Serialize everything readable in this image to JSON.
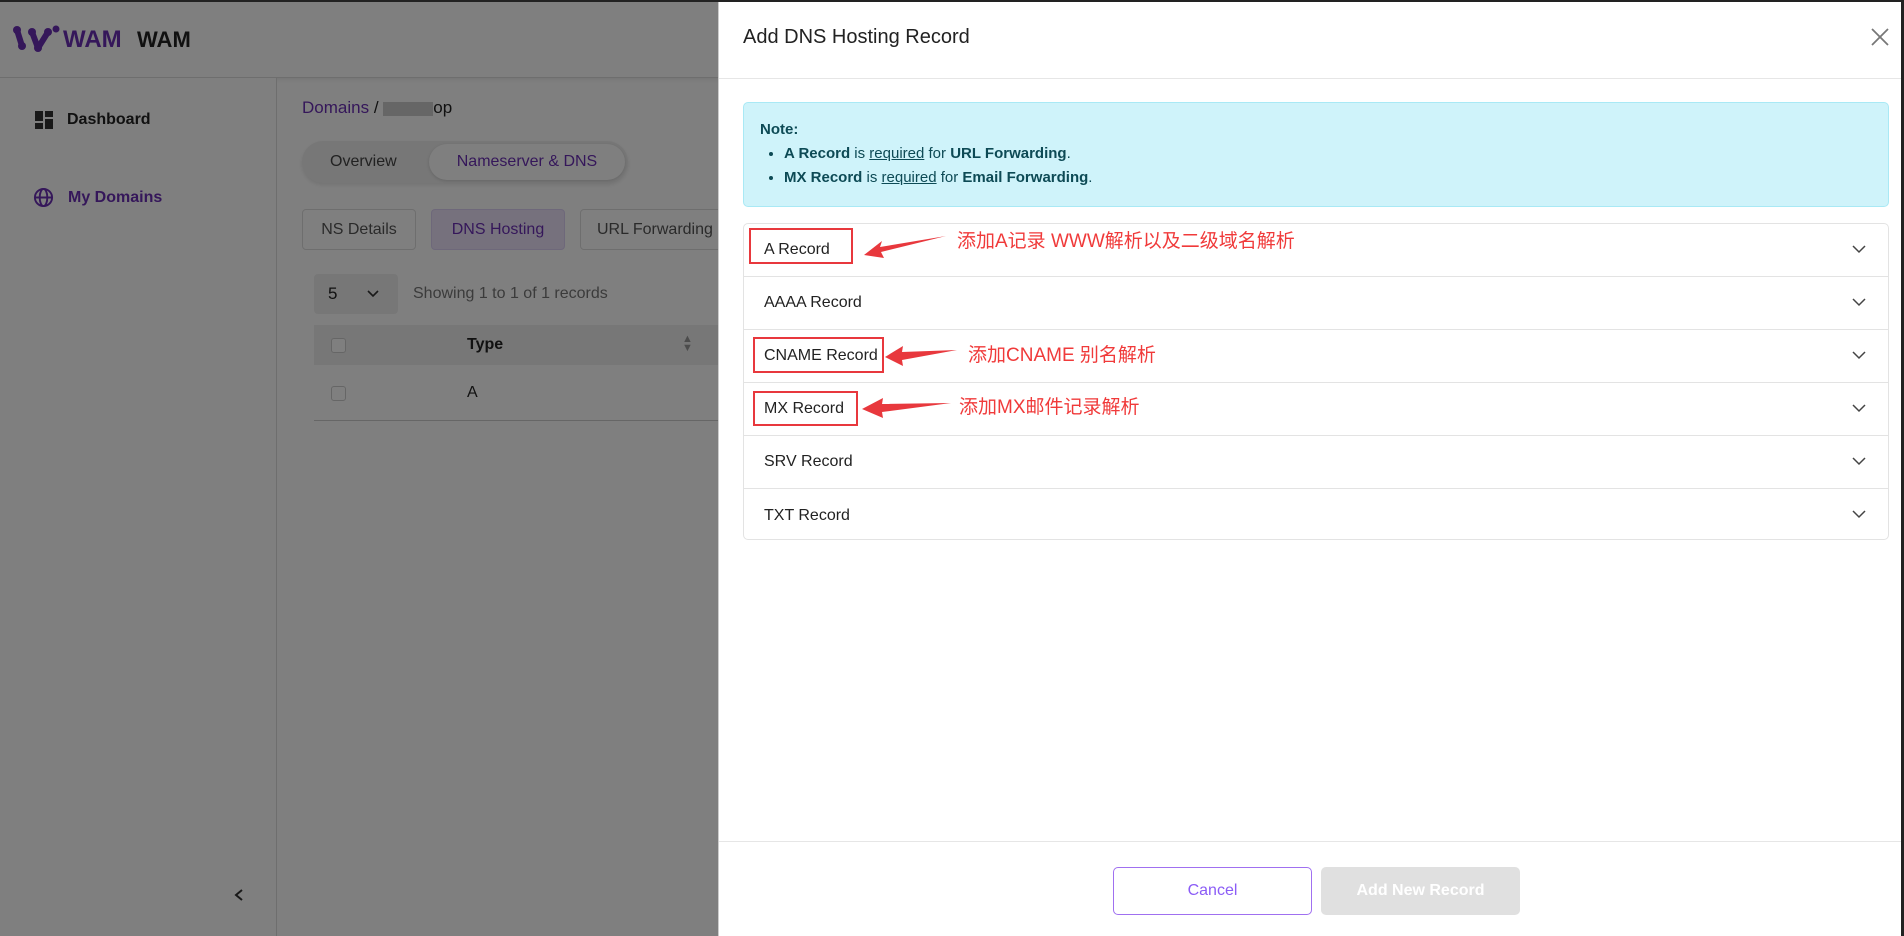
{
  "app": {
    "logo_text": "WAM",
    "title": "WAM"
  },
  "sidebar": {
    "items": [
      {
        "label": "Dashboard",
        "icon": "dashboard-icon"
      },
      {
        "label": "My Domains",
        "icon": "globe-icon"
      }
    ],
    "collapse_icon": "chevron-left-icon"
  },
  "breadcrumb": {
    "root": "Domains",
    "separator": "/",
    "current": "op"
  },
  "main_tabs": [
    {
      "label": "Overview"
    },
    {
      "label": "Nameserver & DNS",
      "active": true
    }
  ],
  "sub_tabs": [
    {
      "label": "NS Details"
    },
    {
      "label": "DNS Hosting",
      "active": true
    },
    {
      "label": "URL Forwarding"
    }
  ],
  "page_size": "5",
  "showing_text": "Showing 1 to 1 of 1 records",
  "table": {
    "headers": [
      "Type"
    ],
    "rows": [
      [
        "A"
      ]
    ]
  },
  "drawer": {
    "title": "Add DNS Hosting Record",
    "note": {
      "label": "Note:",
      "lines": [
        {
          "bold1": "A Record",
          "t1": " is ",
          "link": "required",
          "t2": " for ",
          "bold2": "URL Forwarding",
          "t3": "."
        },
        {
          "bold1": "MX Record",
          "t1": " is ",
          "link": "required",
          "t2": " for ",
          "bold2": "Email Forwarding",
          "t3": "."
        }
      ]
    },
    "records": [
      "A Record",
      "AAAA Record",
      "CNAME Record",
      "MX Record",
      "SRV Record",
      "TXT Record"
    ],
    "cancel_label": "Cancel",
    "add_label": "Add New Record"
  },
  "annotations": [
    "添加A记录 WWW解析以及二级域名解析",
    "添加CNAME 别名解析",
    "添加MX邮件记录解析"
  ],
  "colors": {
    "brand": "#6b2fb5",
    "annotation": "#f03a3a",
    "note_bg": "#cff3fa",
    "cancel_border": "#a070f0"
  }
}
